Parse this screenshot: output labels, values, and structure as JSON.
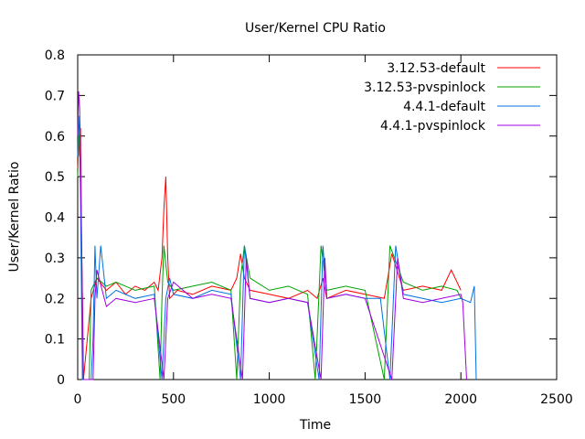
{
  "chart_data": {
    "type": "line",
    "title": "User/Kernel CPU Ratio",
    "xlabel": "Time",
    "ylabel": "User/Kernel Ratio",
    "xlim": [
      0,
      2500
    ],
    "ylim": [
      0,
      0.8
    ],
    "x_ticks": [
      0,
      500,
      1000,
      1500,
      2000,
      2500
    ],
    "y_ticks": [
      0,
      0.1,
      0.2,
      0.3,
      0.4,
      0.5,
      0.6,
      0.7,
      0.8
    ],
    "grid": false,
    "legend_position": "top-right",
    "series": [
      {
        "name": "3.12.53-default",
        "color": "#ff0000",
        "points": [
          [
            0,
            0.52
          ],
          [
            5,
            0.6
          ],
          [
            10,
            0.55
          ],
          [
            15,
            0.62
          ],
          [
            20,
            0.35
          ],
          [
            25,
            0.2
          ],
          [
            30,
            0.0
          ],
          [
            70,
            0.2
          ],
          [
            100,
            0.25
          ],
          [
            150,
            0.22
          ],
          [
            200,
            0.24
          ],
          [
            250,
            0.21
          ],
          [
            300,
            0.23
          ],
          [
            350,
            0.22
          ],
          [
            400,
            0.24
          ],
          [
            420,
            0.22
          ],
          [
            440,
            0.3
          ],
          [
            450,
            0.42
          ],
          [
            460,
            0.5
          ],
          [
            470,
            0.3
          ],
          [
            480,
            0.2
          ],
          [
            520,
            0.22
          ],
          [
            600,
            0.21
          ],
          [
            700,
            0.23
          ],
          [
            800,
            0.22
          ],
          [
            830,
            0.25
          ],
          [
            850,
            0.31
          ],
          [
            870,
            0.25
          ],
          [
            900,
            0.22
          ],
          [
            1000,
            0.21
          ],
          [
            1100,
            0.2
          ],
          [
            1200,
            0.22
          ],
          [
            1250,
            0.2
          ],
          [
            1280,
            0.25
          ],
          [
            1300,
            0.2
          ],
          [
            1400,
            0.22
          ],
          [
            1500,
            0.21
          ],
          [
            1600,
            0.2
          ],
          [
            1640,
            0.31
          ],
          [
            1700,
            0.22
          ],
          [
            1800,
            0.23
          ],
          [
            1900,
            0.22
          ],
          [
            1950,
            0.27
          ],
          [
            2000,
            0.22
          ]
        ]
      },
      {
        "name": "3.12.53-pvspinlock",
        "color": "#00a000",
        "points": [
          [
            0,
            0.5
          ],
          [
            5,
            0.58
          ],
          [
            10,
            0.62
          ],
          [
            15,
            0.5
          ],
          [
            20,
            0.3
          ],
          [
            25,
            0.0
          ],
          [
            60,
            0.0
          ],
          [
            70,
            0.22
          ],
          [
            100,
            0.25
          ],
          [
            150,
            0.23
          ],
          [
            200,
            0.24
          ],
          [
            300,
            0.22
          ],
          [
            400,
            0.23
          ],
          [
            430,
            0.0
          ],
          [
            440,
            0.2
          ],
          [
            450,
            0.33
          ],
          [
            470,
            0.24
          ],
          [
            500,
            0.22
          ],
          [
            600,
            0.23
          ],
          [
            700,
            0.24
          ],
          [
            800,
            0.22
          ],
          [
            830,
            0.0
          ],
          [
            850,
            0.25
          ],
          [
            870,
            0.33
          ],
          [
            900,
            0.25
          ],
          [
            1000,
            0.22
          ],
          [
            1100,
            0.23
          ],
          [
            1200,
            0.21
          ],
          [
            1240,
            0.0
          ],
          [
            1270,
            0.33
          ],
          [
            1300,
            0.22
          ],
          [
            1400,
            0.23
          ],
          [
            1500,
            0.22
          ],
          [
            1600,
            0.0
          ],
          [
            1630,
            0.33
          ],
          [
            1700,
            0.24
          ],
          [
            1800,
            0.22
          ],
          [
            1900,
            0.23
          ],
          [
            1980,
            0.22
          ],
          [
            2000,
            0.2
          ]
        ]
      },
      {
        "name": "4.4.1-default",
        "color": "#0070e0",
        "points": [
          [
            0,
            0.55
          ],
          [
            5,
            0.65
          ],
          [
            10,
            0.6
          ],
          [
            15,
            0.45
          ],
          [
            20,
            0.2
          ],
          [
            25,
            0.0
          ],
          [
            70,
            0.0
          ],
          [
            80,
            0.1
          ],
          [
            90,
            0.33
          ],
          [
            100,
            0.2
          ],
          [
            120,
            0.33
          ],
          [
            150,
            0.2
          ],
          [
            200,
            0.22
          ],
          [
            300,
            0.2
          ],
          [
            400,
            0.21
          ],
          [
            440,
            0.0
          ],
          [
            460,
            0.2
          ],
          [
            480,
            0.25
          ],
          [
            500,
            0.21
          ],
          [
            600,
            0.2
          ],
          [
            700,
            0.22
          ],
          [
            800,
            0.21
          ],
          [
            850,
            0.0
          ],
          [
            870,
            0.33
          ],
          [
            900,
            0.2
          ],
          [
            1000,
            0.19
          ],
          [
            1100,
            0.2
          ],
          [
            1200,
            0.19
          ],
          [
            1260,
            0.0
          ],
          [
            1280,
            0.33
          ],
          [
            1300,
            0.2
          ],
          [
            1400,
            0.21
          ],
          [
            1500,
            0.2
          ],
          [
            1580,
            0.2
          ],
          [
            1630,
            0.0
          ],
          [
            1660,
            0.33
          ],
          [
            1700,
            0.21
          ],
          [
            1800,
            0.2
          ],
          [
            1900,
            0.19
          ],
          [
            2000,
            0.2
          ],
          [
            2050,
            0.19
          ],
          [
            2070,
            0.23
          ],
          [
            2080,
            0.0
          ]
        ]
      },
      {
        "name": "4.4.1-pvspinlock",
        "color": "#a000e0",
        "points": [
          [
            0,
            0.6
          ],
          [
            5,
            0.71
          ],
          [
            10,
            0.67
          ],
          [
            15,
            0.55
          ],
          [
            20,
            0.35
          ],
          [
            30,
            0.0
          ],
          [
            80,
            0.0
          ],
          [
            90,
            0.2
          ],
          [
            100,
            0.27
          ],
          [
            150,
            0.18
          ],
          [
            200,
            0.2
          ],
          [
            300,
            0.19
          ],
          [
            400,
            0.2
          ],
          [
            450,
            0.0
          ],
          [
            470,
            0.2
          ],
          [
            500,
            0.24
          ],
          [
            600,
            0.2
          ],
          [
            700,
            0.21
          ],
          [
            800,
            0.2
          ],
          [
            860,
            0.0
          ],
          [
            880,
            0.3
          ],
          [
            900,
            0.2
          ],
          [
            1000,
            0.19
          ],
          [
            1100,
            0.2
          ],
          [
            1200,
            0.19
          ],
          [
            1270,
            0.0
          ],
          [
            1290,
            0.3
          ],
          [
            1300,
            0.2
          ],
          [
            1400,
            0.21
          ],
          [
            1500,
            0.2
          ],
          [
            1640,
            0.0
          ],
          [
            1670,
            0.3
          ],
          [
            1700,
            0.2
          ],
          [
            1800,
            0.19
          ],
          [
            1900,
            0.2
          ],
          [
            2000,
            0.21
          ],
          [
            2010,
            0.19
          ],
          [
            2030,
            0.0
          ]
        ]
      }
    ]
  }
}
